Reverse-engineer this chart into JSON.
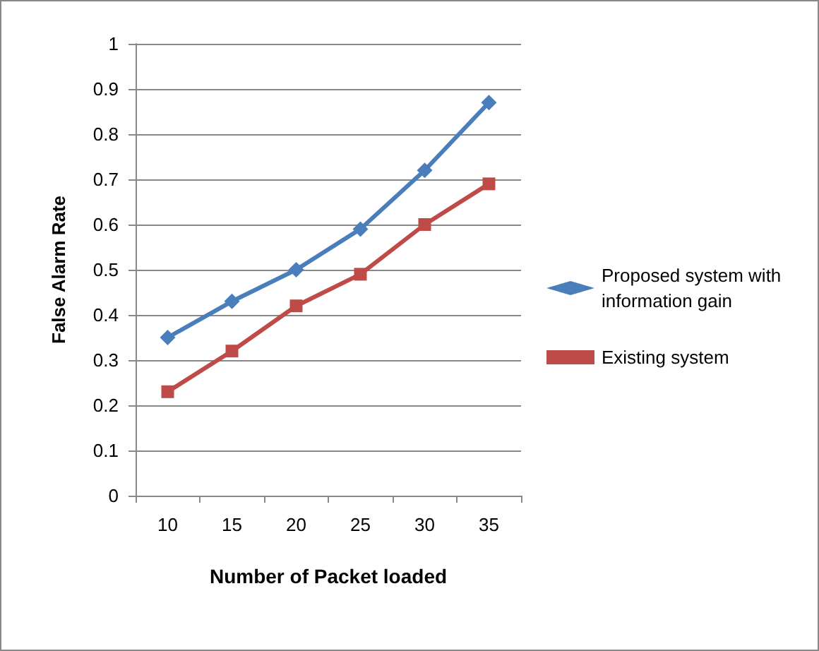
{
  "chart_data": {
    "type": "line",
    "xlabel": "Number of Packet loaded",
    "ylabel": "False Alarm Rate",
    "categories": [
      "10",
      "15",
      "20",
      "25",
      "30",
      "35"
    ],
    "series": [
      {
        "name": "Proposed system with information gain",
        "color": "#4a7ebb",
        "marker": "diamond",
        "values": [
          0.35,
          0.43,
          0.5,
          0.59,
          0.72,
          0.87
        ]
      },
      {
        "name": "Existing system",
        "color": "#be4b48",
        "marker": "square",
        "values": [
          0.23,
          0.32,
          0.42,
          0.49,
          0.6,
          0.69
        ]
      }
    ],
    "ylim": [
      0,
      1
    ],
    "yticks": [
      0,
      0.1,
      0.2,
      0.3,
      0.4,
      0.5,
      0.6,
      0.7,
      0.8,
      0.9,
      1
    ],
    "grid": "y",
    "legend": "right",
    "line_style": "solid"
  }
}
